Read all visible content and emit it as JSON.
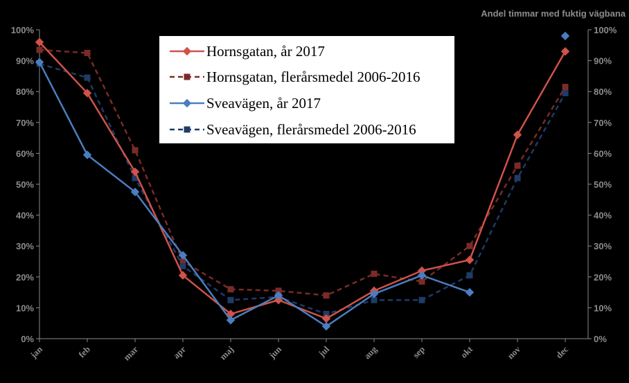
{
  "chart_data": {
    "type": "line",
    "title": "Andel timmar med fuktig vägbana",
    "categories": [
      "jan",
      "feb",
      "mar",
      "apr",
      "maj",
      "jun",
      "jul",
      "aug",
      "sep",
      "okt",
      "nov",
      "dec"
    ],
    "y_tick_labels": [
      "0%",
      "10%",
      "20%",
      "30%",
      "40%",
      "50%",
      "60%",
      "70%",
      "80%",
      "90%",
      "100%"
    ],
    "ylim": [
      0,
      100
    ],
    "grid": false,
    "legend_position": "top-center",
    "series": [
      {
        "name": "Hornsgatan, år 2017",
        "color": "#d0524a",
        "dash": "solid",
        "marker": "diamond",
        "values": [
          96,
          79.5,
          54,
          20.5,
          8,
          12.5,
          6.5,
          15.5,
          22,
          25.5,
          66,
          93
        ]
      },
      {
        "name": "Hornsgatan, flerårsmedel 2006-2016",
        "color": "#7a2b28",
        "dash": "dashed",
        "marker": "square",
        "values": [
          93.5,
          92.5,
          61,
          25,
          16,
          15.5,
          14,
          21,
          18.5,
          30,
          56,
          81.5
        ]
      },
      {
        "name": "Sveavägen, år 2017",
        "color": "#4a7ec0",
        "dash": "solid",
        "marker": "diamond",
        "values": [
          89.5,
          59.5,
          47.5,
          27,
          6,
          14,
          4,
          14.5,
          20.5,
          15,
          null,
          98
        ]
      },
      {
        "name": "Sveavägen, flerårsmedel 2006-2016",
        "color": "#1f3b66",
        "dash": "dashed",
        "marker": "square",
        "values": [
          89,
          84.5,
          52,
          23.5,
          12.5,
          13.5,
          8,
          12.5,
          12.5,
          20.5,
          52,
          79.5
        ]
      }
    ]
  }
}
